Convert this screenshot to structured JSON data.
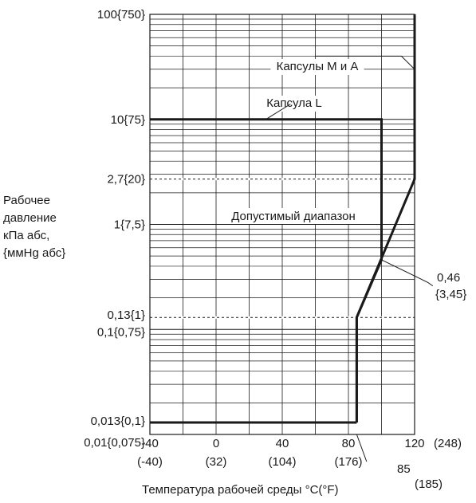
{
  "chart_data": {
    "type": "line",
    "y_scale": "log",
    "x_range": [
      -40,
      120
    ],
    "y_range": [
      0.01,
      100
    ],
    "x_ticks": [
      {
        "value": -40,
        "c": "-40",
        "f": "(-40)"
      },
      {
        "value": 0,
        "c": "0",
        "f": "(32)"
      },
      {
        "value": 40,
        "c": "40",
        "f": "(104)"
      },
      {
        "value": 80,
        "c": "80",
        "f": "(176)"
      },
      {
        "value": 120,
        "c": "120",
        "f": "(248)"
      }
    ],
    "y_ticks": [
      {
        "value": 100,
        "label": "100{750}"
      },
      {
        "value": 10,
        "label": "10{75}"
      },
      {
        "value": 2.7,
        "label": "2,7{20}"
      },
      {
        "value": 1,
        "label": "1{7,5}"
      },
      {
        "value": 0.13,
        "label": "0,13{1}"
      },
      {
        "value": 0.1,
        "label": "0,1{0,75}"
      },
      {
        "value": 0.013,
        "label": "0,013{0,1}"
      },
      {
        "value": 0.01,
        "label": "0,01{0,075}"
      }
    ],
    "dashed_lines": [
      2.7,
      0.13
    ],
    "series": [
      {
        "name": "Капсулы M и A",
        "points": [
          [
            85,
            0.013
          ],
          [
            85,
            0.13
          ],
          [
            120,
            2.7
          ],
          [
            120,
            100
          ]
        ]
      },
      {
        "name": "Капсула L",
        "points": [
          [
            85,
            0.013
          ],
          [
            85,
            0.13
          ],
          [
            100,
            0.46
          ],
          [
            100,
            10
          ],
          [
            -40,
            10
          ]
        ]
      },
      {
        "points": [
          [
            -40,
            0.013
          ],
          [
            85,
            0.013
          ]
        ]
      }
    ],
    "ylabel_lines": [
      "Рабочее",
      "давление",
      "кПа абс,",
      "{ммHg абс}"
    ],
    "xlabel": "Температура рабочей среды °C(°F)",
    "region_label": "Допустимый диапазон",
    "callouts": {
      "x85": "85",
      "x85_f": "(185)",
      "p046": "0,46",
      "p046_mm": "{3,45}"
    }
  }
}
